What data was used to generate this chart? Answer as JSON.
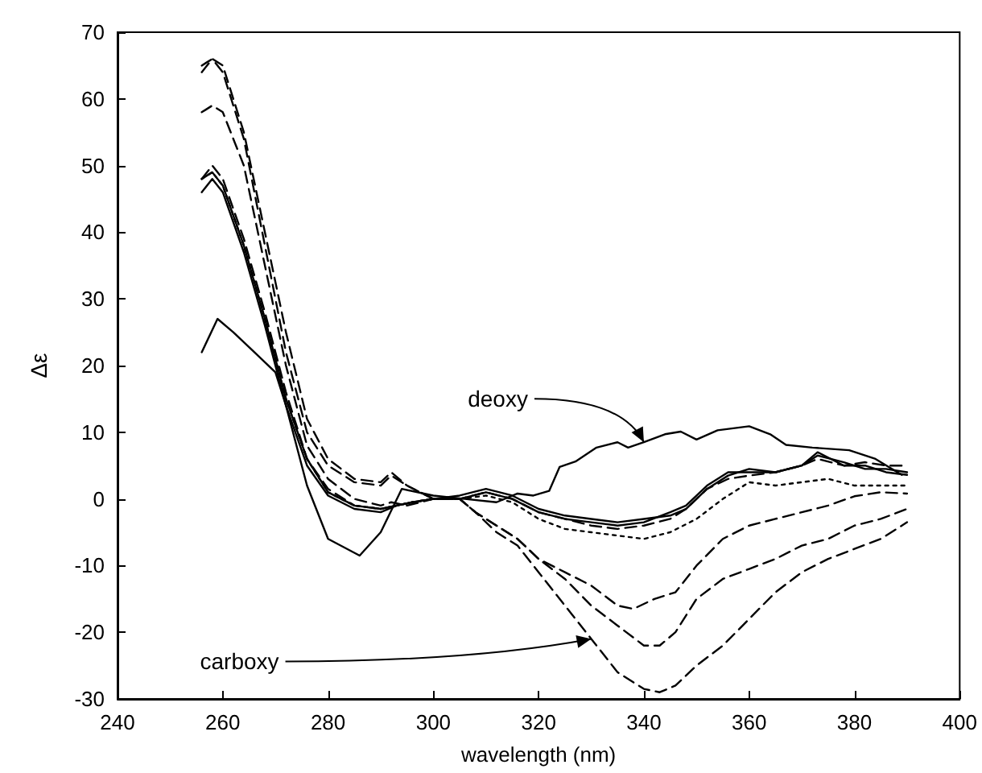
{
  "chart_data": {
    "type": "line",
    "xlabel": "wavelength (nm)",
    "ylabel": "Δε",
    "xlim": [
      240,
      400
    ],
    "xticks": [
      240,
      260,
      280,
      300,
      320,
      340,
      360,
      380,
      400
    ],
    "ylim": [
      -30,
      70
    ],
    "yticks": [
      -30,
      -20,
      -10,
      0,
      10,
      20,
      30,
      40,
      50,
      60,
      70
    ],
    "grid": false,
    "marker": "none",
    "annotations": [
      {
        "text": "deoxy",
        "x": 340,
        "y": 8.5
      },
      {
        "text": "carboxy",
        "x": 330,
        "y": -21
      }
    ],
    "series": [
      {
        "color": "#000000",
        "line_style": "solid",
        "x": [
          256,
          259,
          262,
          266,
          270,
          272,
          276,
          280,
          286,
          290,
          294,
          300,
          306,
          312,
          316,
          319,
          322,
          324,
          327,
          331,
          335,
          337,
          340,
          344,
          347,
          350,
          354,
          360,
          364,
          367,
          372,
          379,
          384,
          389
        ],
        "values": [
          22,
          27,
          25,
          22,
          19,
          14,
          2,
          -6,
          -8.5,
          -5,
          1.5,
          0.5,
          0,
          -0.5,
          0.8,
          0.5,
          1.2,
          4.8,
          5.6,
          7.7,
          8.5,
          7.7,
          8.5,
          9.7,
          10.1,
          8.9,
          10.3,
          10.9,
          9.7,
          8.1,
          7.7,
          7.3,
          6,
          3.6
        ]
      },
      {
        "color": "#000000",
        "line_style": "dashed",
        "x": [
          256,
          258,
          260,
          264,
          268,
          272,
          276,
          280,
          285,
          290,
          292,
          295,
          300,
          305,
          308,
          312,
          316,
          320,
          325,
          330,
          335,
          340,
          343,
          346,
          350,
          355,
          360,
          365,
          370,
          375,
          380,
          385,
          390
        ],
        "values": [
          64,
          66,
          65,
          55,
          40,
          25,
          12,
          6,
          3,
          2.5,
          4,
          2,
          0,
          0,
          -2,
          -5,
          -7,
          -11,
          -16,
          -21,
          -26,
          -28.5,
          -29,
          -28,
          -25,
          -22,
          -18,
          -14,
          -11,
          -9,
          -7.5,
          -6,
          -3.5
        ]
      },
      {
        "color": "#000000",
        "line_style": "dashed",
        "x": [
          256,
          258,
          260,
          264,
          268,
          272,
          276,
          280,
          285,
          290,
          292,
          295,
          300,
          305,
          308,
          312,
          316,
          320,
          325,
          330,
          335,
          340,
          343,
          346,
          350,
          355,
          360,
          365,
          370,
          375,
          380,
          385,
          390
        ],
        "values": [
          65,
          66,
          64,
          54,
          38,
          22,
          10,
          5,
          2.5,
          2,
          3.5,
          2,
          0,
          0,
          -2,
          -4,
          -6,
          -9,
          -12,
          -16,
          -19,
          -22,
          -22,
          -20,
          -15,
          -12,
          -10.5,
          -9,
          -7,
          -6,
          -4,
          -3,
          -1.5
        ]
      },
      {
        "color": "#000000",
        "line_style": "dashed",
        "x": [
          256,
          258,
          260,
          264,
          268,
          272,
          276,
          280,
          285,
          290,
          292,
          295,
          300,
          305,
          308,
          312,
          316,
          320,
          325,
          330,
          335,
          338,
          342,
          346,
          350,
          355,
          360,
          365,
          370,
          375,
          380,
          385,
          390
        ],
        "values": [
          58,
          59,
          58,
          50,
          35,
          20,
          8,
          3,
          0,
          -1,
          -0.5,
          -1,
          0,
          0,
          -2,
          -4,
          -6,
          -9,
          -11,
          -13,
          -16,
          -16.5,
          -15,
          -14,
          -10,
          -6,
          -4,
          -3,
          -2,
          -1,
          0.4,
          1,
          0.8
        ]
      },
      {
        "color": "#000000",
        "line_style": "solid",
        "x": [
          256,
          258,
          260,
          264,
          268,
          272,
          276,
          280,
          285,
          290,
          293,
          296,
          300,
          305,
          310,
          315,
          320,
          325,
          330,
          335,
          340,
          345,
          348,
          352,
          356,
          360,
          365,
          370,
          373,
          378,
          382,
          386,
          390
        ],
        "values": [
          48,
          49,
          47,
          38,
          27,
          15,
          6,
          1,
          -1,
          -1.5,
          -1,
          -0.5,
          0,
          0,
          1,
          0,
          -2,
          -3,
          -3.5,
          -4,
          -3.5,
          -2,
          -1,
          2,
          4,
          4,
          4,
          5,
          7,
          5,
          5,
          4,
          3.6
        ]
      },
      {
        "color": "#000000",
        "line_style": "solid",
        "x": [
          256,
          258,
          260,
          264,
          268,
          272,
          276,
          280,
          285,
          290,
          293,
          296,
          300,
          305,
          310,
          315,
          320,
          325,
          330,
          335,
          340,
          345,
          348,
          352,
          356,
          360,
          365,
          370,
          373,
          378,
          382,
          386,
          390
        ],
        "values": [
          46,
          48,
          46,
          37,
          26,
          14,
          5,
          0.5,
          -1.5,
          -2,
          -1,
          -0.5,
          0,
          0.5,
          1.5,
          0.5,
          -1.5,
          -2.5,
          -3,
          -3.5,
          -3,
          -2.5,
          -1.5,
          1.5,
          3.5,
          4.5,
          4,
          5,
          6.5,
          5.5,
          4.5,
          4.5,
          4
        ]
      },
      {
        "color": "#000000",
        "line_style": "dashed",
        "x": [
          256,
          258,
          260,
          264,
          268,
          272,
          276,
          280,
          285,
          290,
          293,
          296,
          300,
          305,
          310,
          315,
          320,
          325,
          330,
          335,
          340,
          345,
          348,
          352,
          356,
          360,
          365,
          370,
          373,
          378,
          382,
          386,
          390
        ],
        "values": [
          48,
          50,
          48,
          39,
          28,
          16,
          6,
          1.5,
          -1,
          -1.5,
          -1,
          -0.5,
          0,
          0,
          1,
          0,
          -2,
          -3,
          -4,
          -4.5,
          -4,
          -3,
          -1.5,
          1.5,
          3,
          3.5,
          4,
          5,
          6,
          5,
          5.5,
          5,
          5
        ]
      },
      {
        "color": "#000000",
        "line_style": "dotted",
        "x": [
          256,
          258,
          260,
          264,
          268,
          272,
          276,
          280,
          285,
          290,
          293,
          296,
          300,
          305,
          310,
          315,
          320,
          325,
          330,
          335,
          340,
          345,
          350,
          355,
          360,
          365,
          370,
          375,
          380,
          385,
          390
        ],
        "values": [
          48,
          49,
          47,
          38,
          27,
          15,
          6,
          1,
          -1,
          -1.5,
          -1,
          -0.5,
          0,
          0,
          0.5,
          -0.5,
          -3,
          -4.5,
          -5,
          -5.5,
          -6,
          -5,
          -3,
          0,
          2.5,
          2,
          2.5,
          3,
          2,
          2,
          2
        ]
      }
    ]
  }
}
